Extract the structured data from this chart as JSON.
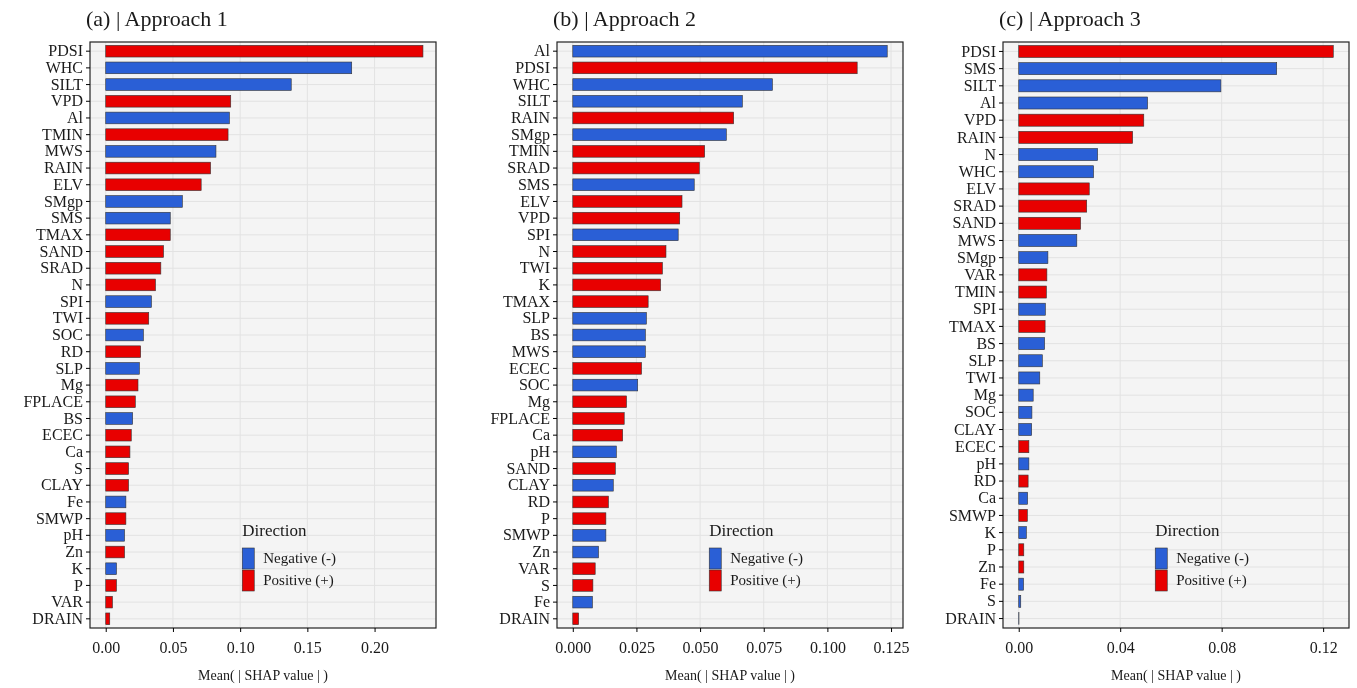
{
  "chart_data": [
    {
      "type": "bar",
      "orientation": "horizontal",
      "title": "(a) | Approach 1",
      "xlabel": "Mean( | SHAP value | )",
      "legend_title": "Direction",
      "legend": "bottom right",
      "grid": true,
      "categories": [
        "PDSI",
        "WHC",
        "SILT",
        "VPD",
        "Al",
        "TMIN",
        "MWS",
        "RAIN",
        "ELV",
        "SMgp",
        "SMS",
        "TMAX",
        "SAND",
        "SRAD",
        "N",
        "SPI",
        "TWI",
        "SOC",
        "RD",
        "SLP",
        "Mg",
        "FPLACE",
        "BS",
        "ECEC",
        "Ca",
        "S",
        "CLAY",
        "Fe",
        "SMWP",
        "pH",
        "Zn",
        "K",
        "P",
        "VAR",
        "DRAIN"
      ],
      "xlim": [
        -0.0117,
        0.2457
      ],
      "xticks": [
        {
          "value": 0,
          "label": "0.00"
        },
        {
          "value": 0.05,
          "label": "0.05"
        },
        {
          "value": 0.1,
          "label": "0.10"
        },
        {
          "value": 0.15,
          "label": "0.15"
        },
        {
          "value": 0.2,
          "label": "0.20"
        }
      ],
      "series": [
        {
          "name": "Negative (-)",
          "color": "#2a5fd6",
          "values": [
            null,
            0.183,
            0.138,
            null,
            0.092,
            null,
            0.082,
            null,
            null,
            0.057,
            0.048,
            null,
            null,
            null,
            null,
            0.034,
            null,
            0.028,
            null,
            0.025,
            null,
            null,
            0.02,
            null,
            null,
            null,
            null,
            0.015,
            null,
            0.014,
            null,
            0.008,
            null,
            null,
            null
          ]
        },
        {
          "name": "Positive (+)",
          "color": "#e80000",
          "values": [
            0.236,
            null,
            null,
            0.093,
            null,
            0.091,
            null,
            0.078,
            0.071,
            null,
            null,
            0.048,
            0.043,
            0.041,
            0.037,
            null,
            0.032,
            null,
            0.026,
            null,
            0.024,
            0.022,
            null,
            0.019,
            0.018,
            0.017,
            0.017,
            null,
            0.015,
            null,
            0.014,
            null,
            0.008,
            0.005,
            0.003
          ]
        }
      ]
    },
    {
      "type": "bar",
      "orientation": "horizontal",
      "title": "(b) | Approach 2",
      "xlabel": "Mean( | SHAP value | )",
      "legend_title": "Direction",
      "legend": "bottom right",
      "grid": true,
      "categories": [
        "Al",
        "PDSI",
        "WHC",
        "SILT",
        "RAIN",
        "SMgp",
        "TMIN",
        "SRAD",
        "SMS",
        "ELV",
        "VPD",
        "SPI",
        "N",
        "TWI",
        "K",
        "TMAX",
        "SLP",
        "BS",
        "MWS",
        "ECEC",
        "SOC",
        "Mg",
        "FPLACE",
        "Ca",
        "pH",
        "SAND",
        "CLAY",
        "RD",
        "P",
        "SMWP",
        "Zn",
        "VAR",
        "S",
        "Fe",
        "DRAIN"
      ],
      "xlim": [
        -0.0062,
        0.1297
      ],
      "xticks": [
        {
          "value": 0,
          "label": "0.000"
        },
        {
          "value": 0.025,
          "label": "0.025"
        },
        {
          "value": 0.05,
          "label": "0.050"
        },
        {
          "value": 0.075,
          "label": "0.075"
        },
        {
          "value": 0.1,
          "label": "0.100"
        },
        {
          "value": 0.125,
          "label": "0.125"
        }
      ],
      "series": [
        {
          "name": "Negative (-)",
          "color": "#2a5fd6",
          "values": [
            0.1235,
            null,
            0.0784,
            0.0666,
            null,
            0.0603,
            null,
            null,
            0.0477,
            null,
            null,
            0.0414,
            null,
            null,
            null,
            null,
            0.0289,
            0.0285,
            0.0285,
            null,
            0.0255,
            null,
            null,
            null,
            0.0171,
            null,
            0.0159,
            null,
            null,
            0.013,
            0.0101,
            null,
            null,
            0.0077,
            null
          ]
        },
        {
          "name": "Positive (+)",
          "color": "#e80000",
          "values": [
            null,
            0.1117,
            null,
            null,
            0.0632,
            null,
            0.0518,
            0.0497,
            null,
            0.0429,
            0.042,
            null,
            0.0366,
            0.0352,
            0.0345,
            0.0296,
            null,
            null,
            null,
            0.027,
            null,
            0.0211,
            0.0202,
            0.0196,
            null,
            0.0167,
            null,
            0.014,
            0.013,
            null,
            null,
            0.0088,
            0.0079,
            null,
            0.0023
          ]
        }
      ]
    },
    {
      "type": "bar",
      "orientation": "horizontal",
      "title": "(c) | Approach 3",
      "xlabel": "Mean( | SHAP value | )",
      "legend_title": "Direction",
      "legend": "bottom right",
      "grid": true,
      "categories": [
        "PDSI",
        "SMS",
        "SILT",
        "Al",
        "VPD",
        "RAIN",
        "N",
        "WHC",
        "ELV",
        "SRAD",
        "SAND",
        "MWS",
        "SMgp",
        "VAR",
        "TMIN",
        "SPI",
        "TMAX",
        "BS",
        "SLP",
        "TWI",
        "Mg",
        "SOC",
        "CLAY",
        "ECEC",
        "pH",
        "RD",
        "Ca",
        "SMWP",
        "K",
        "P",
        "Zn",
        "Fe",
        "S",
        "DRAIN"
      ],
      "xlim": [
        -0.0062,
        0.1302
      ],
      "xticks": [
        {
          "value": 0,
          "label": "0.00"
        },
        {
          "value": 0.04,
          "label": "0.04"
        },
        {
          "value": 0.08,
          "label": "0.08"
        },
        {
          "value": 0.12,
          "label": "0.12"
        }
      ],
      "series": [
        {
          "name": "Negative (-)",
          "color": "#2a5fd6",
          "values": [
            null,
            0.1017,
            0.0797,
            0.0508,
            null,
            null,
            0.0311,
            0.0295,
            null,
            null,
            null,
            0.0229,
            0.0115,
            null,
            null,
            0.0105,
            null,
            0.0102,
            0.0093,
            0.0083,
            0.0057,
            0.0052,
            0.0051,
            null,
            0.004,
            null,
            0.0035,
            null,
            0.003,
            null,
            null,
            0.0019,
            0.0008,
            0.0001
          ]
        },
        {
          "name": "Positive (+)",
          "color": "#e80000",
          "values": [
            0.124,
            null,
            null,
            null,
            0.0493,
            0.0449,
            null,
            null,
            0.0278,
            0.0268,
            0.0244,
            null,
            null,
            0.0111,
            0.0109,
            null,
            0.0104,
            null,
            null,
            null,
            null,
            null,
            null,
            0.004,
            null,
            0.0037,
            null,
            0.0034,
            null,
            0.002,
            0.002,
            null,
            null,
            null
          ]
        }
      ]
    }
  ]
}
